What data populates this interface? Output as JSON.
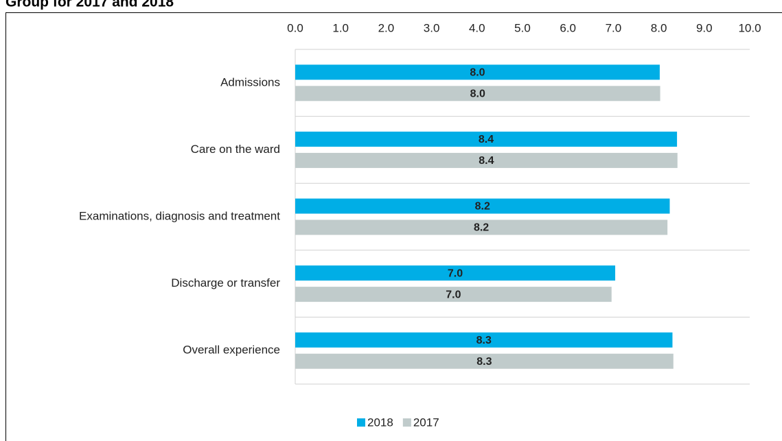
{
  "chart_data": {
    "type": "hbar",
    "title": "Group for 2017 and 2018",
    "categories": [
      "Admissions",
      "Care on the ward",
      "Examinations, diagnosis and treatment",
      "Discharge or transfer",
      "Overall experience"
    ],
    "series": [
      {
        "name": "2018",
        "color": "#00aee6",
        "label_color": "#ffffff",
        "values": [
          8.02,
          8.4,
          8.24,
          7.04,
          8.3
        ],
        "value_labels": [
          "8.0",
          "8.4",
          "8.2",
          "7.0",
          "8.3"
        ]
      },
      {
        "name": "2017",
        "color": "#c0cbcb",
        "label_color": "#404040",
        "values": [
          8.03,
          8.41,
          8.19,
          6.96,
          8.32
        ],
        "value_labels": [
          "8.0",
          "8.4",
          "8.2",
          "7.0",
          "8.3"
        ]
      }
    ],
    "xlim": [
      0,
      10
    ],
    "xticks": [
      {
        "value": 0,
        "label": "0.0"
      },
      {
        "value": 1,
        "label": "1.0"
      },
      {
        "value": 2,
        "label": "2.0"
      },
      {
        "value": 3,
        "label": "3.0"
      },
      {
        "value": 4,
        "label": "4.0"
      },
      {
        "value": 5,
        "label": "5.0"
      },
      {
        "value": 6,
        "label": "6.0"
      },
      {
        "value": 7,
        "label": "7.0"
      },
      {
        "value": 8,
        "label": "8.0"
      },
      {
        "value": 9,
        "label": "9.0"
      },
      {
        "value": 10,
        "label": "10.0"
      }
    ],
    "legend": "bottom"
  }
}
